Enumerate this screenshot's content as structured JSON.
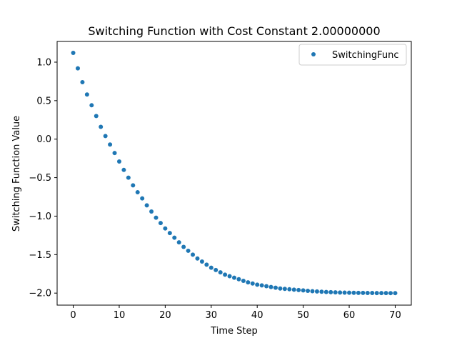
{
  "chart_data": {
    "type": "scatter",
    "title": "Switching Function with Cost Constant 2.00000000",
    "xlabel": "Time Step",
    "ylabel": "Switching Function Value",
    "xlim": [
      -3.5,
      73.5
    ],
    "ylim": [
      -2.156,
      1.269
    ],
    "xticks": [
      0,
      10,
      20,
      30,
      40,
      50,
      60,
      70
    ],
    "xtick_labels": [
      "0",
      "10",
      "20",
      "30",
      "40",
      "50",
      "60",
      "70"
    ],
    "yticks": [
      1.0,
      0.5,
      0.0,
      -0.5,
      -1.0,
      -1.5,
      -2.0
    ],
    "ytick_labels": [
      "1.0",
      "0.5",
      "0.0",
      "−0.5",
      "−1.0",
      "−1.5",
      "−2.0"
    ],
    "grid": false,
    "legend_position": "top-right",
    "series": [
      {
        "name": "SwitchingFunc",
        "color": "#1f77b4",
        "marker": "circle",
        "x": [
          0,
          1,
          2,
          3,
          4,
          5,
          6,
          7,
          8,
          9,
          10,
          11,
          12,
          13,
          14,
          15,
          16,
          17,
          18,
          19,
          20,
          21,
          22,
          23,
          24,
          25,
          26,
          27,
          28,
          29,
          30,
          31,
          32,
          33,
          34,
          35,
          36,
          37,
          38,
          39,
          40,
          41,
          42,
          43,
          44,
          45,
          46,
          47,
          48,
          49,
          50,
          51,
          52,
          53,
          54,
          55,
          56,
          57,
          58,
          59,
          60,
          61,
          62,
          63,
          64,
          65,
          66,
          67,
          68,
          69,
          70
        ],
        "y": [
          1.12,
          0.92,
          0.74,
          0.58,
          0.44,
          0.3,
          0.16,
          0.04,
          -0.07,
          -0.18,
          -0.29,
          -0.4,
          -0.5,
          -0.6,
          -0.69,
          -0.77,
          -0.86,
          -0.94,
          -1.02,
          -1.09,
          -1.16,
          -1.22,
          -1.28,
          -1.34,
          -1.4,
          -1.45,
          -1.5,
          -1.55,
          -1.59,
          -1.63,
          -1.67,
          -1.7,
          -1.73,
          -1.76,
          -1.78,
          -1.8,
          -1.82,
          -1.84,
          -1.86,
          -1.875,
          -1.89,
          -1.9,
          -1.91,
          -1.92,
          -1.93,
          -1.94,
          -1.945,
          -1.95,
          -1.955,
          -1.96,
          -1.965,
          -1.97,
          -1.975,
          -1.978,
          -1.982,
          -1.985,
          -1.988,
          -1.99,
          -1.992,
          -1.994,
          -1.995,
          -1.996,
          -1.997,
          -1.997,
          -1.998,
          -1.998,
          -1.999,
          -1.999,
          -1.999,
          -2.0,
          -2.0
        ]
      }
    ]
  }
}
